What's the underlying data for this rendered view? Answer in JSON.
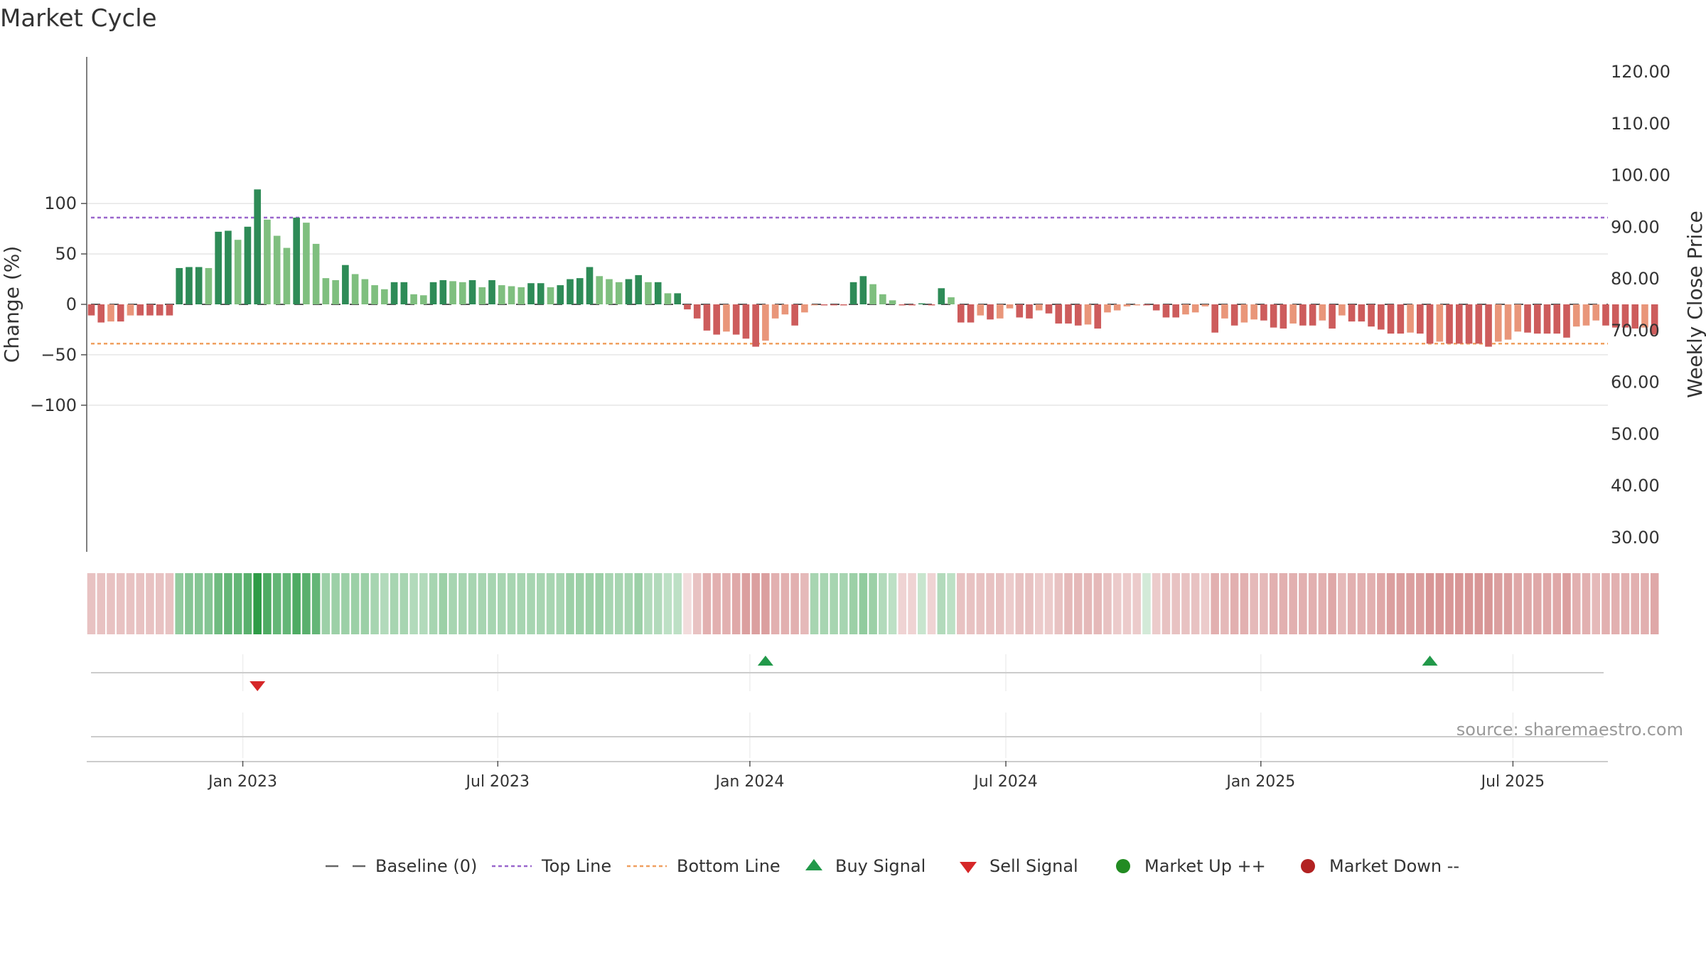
{
  "chart_data": {
    "type": "bar",
    "title": "Market Cycle",
    "ylabel_left": "Change (%)",
    "ylabel_right": "Weekly Close Price",
    "source": "source: sharemaestro.com",
    "y_left_ticks": [
      {
        "value": 100,
        "label": "100"
      },
      {
        "value": 50,
        "label": "50"
      },
      {
        "value": 0,
        "label": "0"
      },
      {
        "value": -50,
        "label": "−50"
      },
      {
        "value": -100,
        "label": "−100"
      }
    ],
    "y_right_ticks": [
      "120.00",
      "110.00",
      "100.00",
      "90.00",
      "80.00",
      "70.00",
      "60.00",
      "50.00",
      "40.00",
      "30.00"
    ],
    "ylim_left": [
      -123,
      123
    ],
    "x_ticks": [
      "Jan 2023",
      "Jul 2023",
      "Jan 2024",
      "Jul 2024",
      "Jan 2025",
      "Jul 2025"
    ],
    "top_line": 86,
    "bottom_line": -39,
    "bar_width_weeks": 0.7,
    "values": [
      -11,
      -18,
      -17,
      -17,
      -11,
      -11,
      -11,
      -11,
      -11,
      36,
      37,
      37,
      36,
      72,
      73,
      64,
      77,
      114,
      84,
      68,
      56,
      86,
      81,
      60,
      26,
      24,
      39,
      30,
      25,
      19,
      15,
      22,
      22,
      10,
      9,
      22,
      24,
      23,
      22,
      24,
      17,
      24,
      19,
      18,
      17,
      21,
      21,
      17,
      19,
      25,
      26,
      37,
      28,
      25,
      22,
      25,
      29,
      22,
      22,
      11,
      11,
      -5,
      -14,
      -26,
      -30,
      -27,
      -30,
      -34,
      -42,
      -36,
      -14,
      -10,
      -21,
      -8,
      -1,
      -1,
      -1,
      -1,
      22,
      28,
      20,
      10,
      4,
      -1,
      -1,
      1,
      -1,
      16,
      7,
      -18,
      -18,
      -11,
      -15,
      -14,
      -4,
      -13,
      -14,
      -6,
      -9,
      -19,
      -19,
      -21,
      -20,
      -24,
      -8,
      -6,
      -2,
      -1,
      -1,
      -6,
      -13,
      -13,
      -10,
      -8,
      -2,
      -28,
      -14,
      -21,
      -18,
      -15,
      -16,
      -23,
      -24,
      -19,
      -21,
      -21,
      -16,
      -24,
      -11,
      -17,
      -17,
      -22,
      -25,
      -29,
      -29,
      -28,
      -29,
      -39,
      -37,
      -39,
      -39,
      -39,
      -39,
      -42,
      -37,
      -35,
      -27,
      -28,
      -29,
      -29,
      -29,
      -33,
      -22,
      -21,
      -16,
      -21,
      -23,
      -23,
      -24,
      -23,
      -30
    ],
    "heat": [
      -0.35,
      -0.35,
      -0.35,
      -0.35,
      -0.35,
      -0.35,
      -0.35,
      -0.35,
      -0.35,
      0.5,
      0.55,
      0.55,
      0.55,
      0.65,
      0.7,
      0.7,
      0.75,
      0.95,
      0.8,
      0.7,
      0.7,
      0.8,
      0.75,
      0.7,
      0.45,
      0.45,
      0.45,
      0.45,
      0.45,
      0.4,
      0.35,
      0.4,
      0.4,
      0.35,
      0.35,
      0.4,
      0.45,
      0.4,
      0.4,
      0.4,
      0.4,
      0.4,
      0.4,
      0.4,
      0.4,
      0.4,
      0.4,
      0.4,
      0.4,
      0.45,
      0.45,
      0.45,
      0.45,
      0.4,
      0.4,
      0.4,
      0.45,
      0.35,
      0.35,
      0.3,
      0.3,
      -0.2,
      -0.35,
      -0.45,
      -0.45,
      -0.45,
      -0.5,
      -0.55,
      -0.55,
      -0.55,
      -0.45,
      -0.45,
      -0.45,
      -0.4,
      0.4,
      0.4,
      0.4,
      0.4,
      0.45,
      0.5,
      0.45,
      0.35,
      0.3,
      -0.25,
      -0.25,
      0.25,
      -0.25,
      0.35,
      0.3,
      -0.35,
      -0.35,
      -0.35,
      -0.35,
      -0.35,
      -0.3,
      -0.35,
      -0.35,
      -0.3,
      -0.3,
      -0.35,
      -0.4,
      -0.4,
      -0.4,
      -0.4,
      -0.35,
      -0.3,
      -0.3,
      -0.3,
      0.2,
      -0.3,
      -0.35,
      -0.35,
      -0.35,
      -0.35,
      -0.3,
      -0.45,
      -0.4,
      -0.45,
      -0.45,
      -0.4,
      -0.4,
      -0.45,
      -0.45,
      -0.45,
      -0.45,
      -0.45,
      -0.45,
      -0.5,
      -0.4,
      -0.45,
      -0.45,
      -0.45,
      -0.5,
      -0.55,
      -0.55,
      -0.55,
      -0.55,
      -0.6,
      -0.6,
      -0.6,
      -0.6,
      -0.6,
      -0.6,
      -0.6,
      -0.55,
      -0.55,
      -0.5,
      -0.5,
      -0.5,
      -0.5,
      -0.5,
      -0.55,
      -0.45,
      -0.45,
      -0.4,
      -0.45,
      -0.45,
      -0.45,
      -0.45,
      -0.45,
      -0.5
    ],
    "signals": [
      {
        "type": "sell",
        "week": 17
      },
      {
        "type": "buy",
        "week": 69
      },
      {
        "type": "buy",
        "week": 137
      }
    ],
    "legend": [
      {
        "label": "Baseline (0)",
        "symbol": "dash",
        "color": "#666666"
      },
      {
        "label": "Top Line",
        "symbol": "dotted",
        "color": "#9966cc"
      },
      {
        "label": "Bottom Line",
        "symbol": "dotted",
        "color": "#f0a060"
      },
      {
        "label": "Buy Signal",
        "symbol": "triangle-up",
        "color": "#22994a"
      },
      {
        "label": "Sell Signal",
        "symbol": "triangle-down",
        "color": "#d62728"
      },
      {
        "label": "Market Up ++",
        "symbol": "circle",
        "color": "#228b22"
      },
      {
        "label": "Market Down --",
        "symbol": "circle",
        "color": "#b22222"
      }
    ],
    "colors": {
      "up_strong": "#2e8b57",
      "up_weak": "#7fbf7f",
      "down_strong": "#cd5c5c",
      "down_weak": "#e9967a",
      "top_line": "#9966cc",
      "bottom_line": "#f0a060",
      "grid": "#e6e6e6"
    }
  }
}
